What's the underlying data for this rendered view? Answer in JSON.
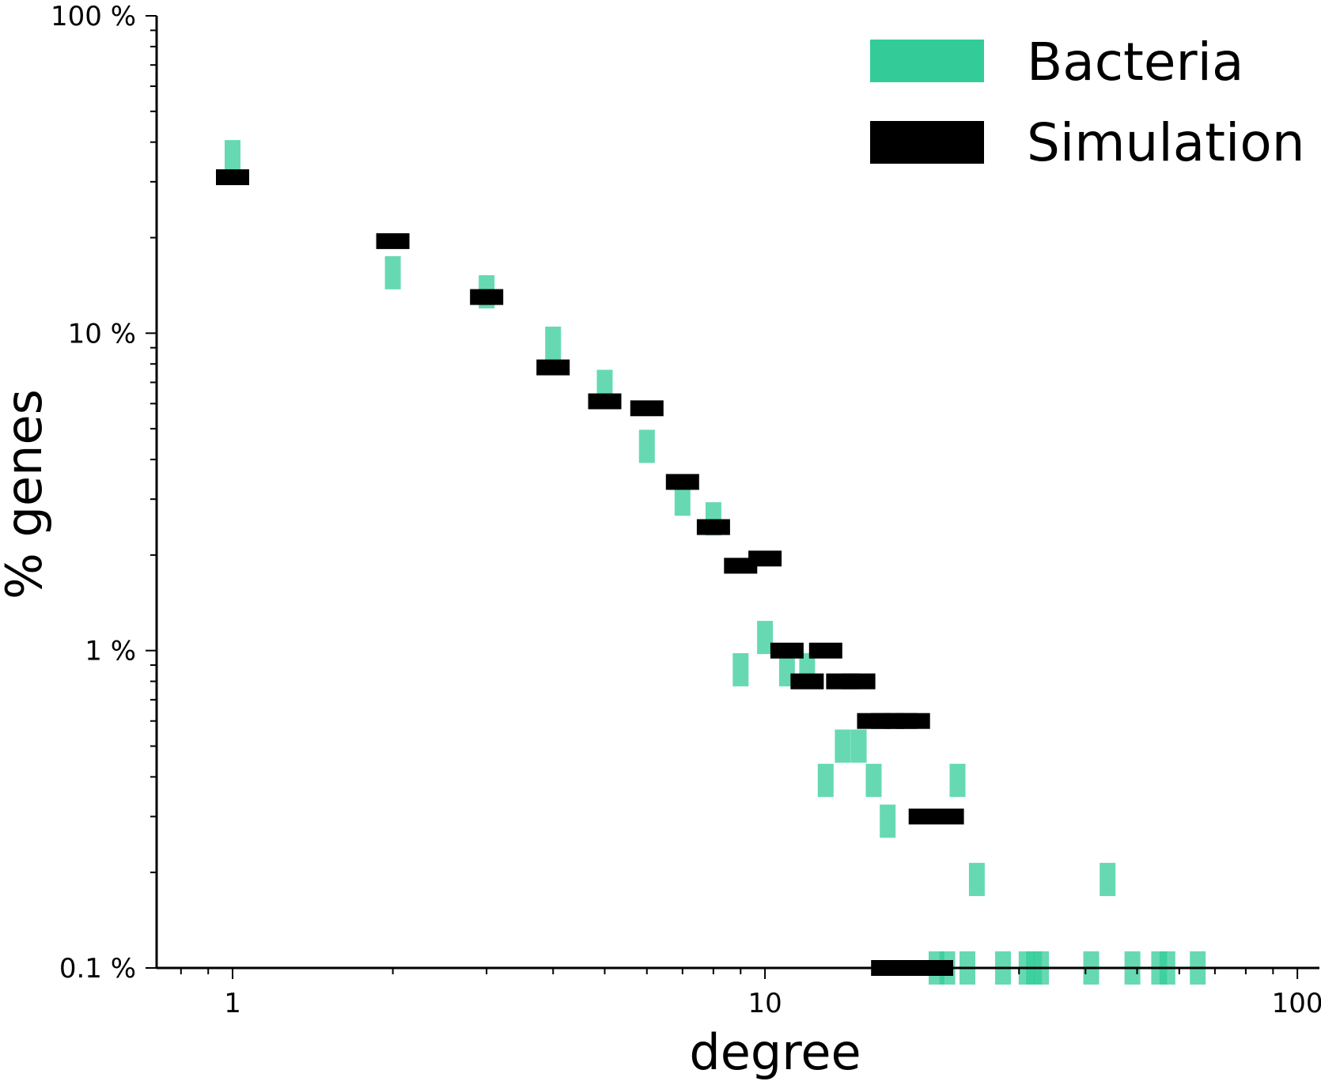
{
  "chart_data": {
    "type": "scatter",
    "title": "",
    "xlabel": "degree",
    "ylabel": "% genes",
    "x_scale": "log",
    "y_scale": "log",
    "xlim": [
      0.72,
      110
    ],
    "ylim": [
      0.1,
      100
    ],
    "x_ticks": [
      {
        "value": 1,
        "label": "1"
      },
      {
        "value": 10,
        "label": "10"
      },
      {
        "value": 100,
        "label": "100"
      }
    ],
    "y_ticks": [
      {
        "value": 0.1,
        "label": "0.1 %"
      },
      {
        "value": 1,
        "label": "1 %"
      },
      {
        "value": 10,
        "label": "10 %"
      },
      {
        "value": 100,
        "label": "100 %"
      }
    ],
    "grid": false,
    "legend_position": "top-right",
    "series": [
      {
        "name": "Bacteria",
        "color": "#33cc99",
        "marker": "vertical-bar",
        "points": [
          [
            1,
            36
          ],
          [
            2,
            15.5
          ],
          [
            3,
            13.5
          ],
          [
            4,
            9.3
          ],
          [
            5,
            6.8
          ],
          [
            6,
            4.4
          ],
          [
            7,
            3.0
          ],
          [
            8,
            2.6
          ],
          [
            9,
            0.87
          ],
          [
            10,
            1.1
          ],
          [
            11,
            0.87
          ],
          [
            12,
            0.87
          ],
          [
            13,
            0.39
          ],
          [
            14,
            0.5
          ],
          [
            15,
            0.5
          ],
          [
            16,
            0.39
          ],
          [
            17,
            0.29
          ],
          [
            21,
            0.1
          ],
          [
            22,
            0.1
          ],
          [
            23,
            0.39
          ],
          [
            24,
            0.1
          ],
          [
            25,
            0.19
          ],
          [
            28,
            0.1
          ],
          [
            31,
            0.1
          ],
          [
            32,
            0.1
          ],
          [
            33,
            0.1
          ],
          [
            41,
            0.1
          ],
          [
            44,
            0.19
          ],
          [
            49,
            0.1
          ],
          [
            55,
            0.1
          ],
          [
            57,
            0.1
          ],
          [
            65,
            0.1
          ]
        ]
      },
      {
        "name": "Simulation",
        "color": "#000000",
        "marker": "horizontal-bar",
        "points": [
          [
            1,
            31
          ],
          [
            2,
            19.5
          ],
          [
            3,
            13
          ],
          [
            4,
            7.8
          ],
          [
            5,
            6.1
          ],
          [
            6,
            5.8
          ],
          [
            7,
            3.4
          ],
          [
            8,
            2.45
          ],
          [
            9,
            1.85
          ],
          [
            10,
            1.95
          ],
          [
            11,
            1.0
          ],
          [
            12,
            0.8
          ],
          [
            13,
            1.0
          ],
          [
            14,
            0.8
          ],
          [
            15,
            0.8
          ],
          [
            16,
            0.6
          ],
          [
            17,
            0.6
          ],
          [
            18,
            0.6
          ],
          [
            19,
            0.6
          ],
          [
            20,
            0.3
          ],
          [
            21,
            0.3
          ],
          [
            22,
            0.3
          ],
          [
            17,
            0.1
          ],
          [
            18,
            0.1
          ],
          [
            20,
            0.1
          ],
          [
            21,
            0.1
          ]
        ]
      }
    ]
  }
}
